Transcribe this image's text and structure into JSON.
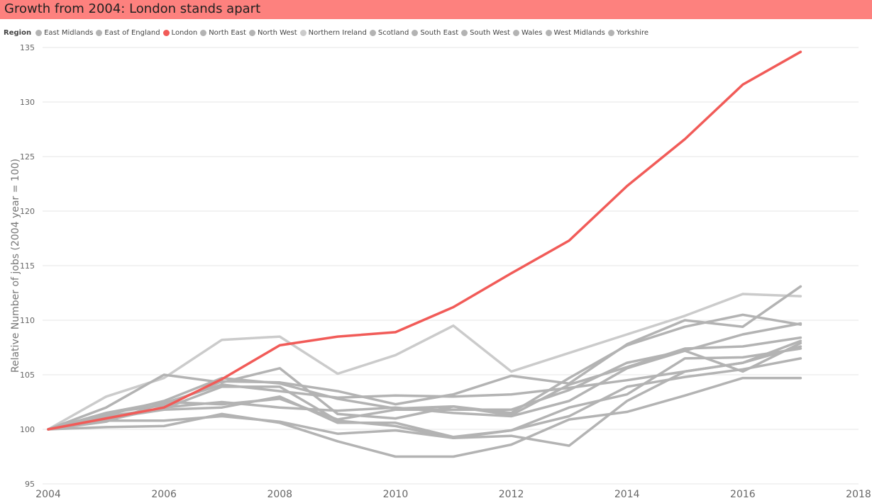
{
  "title": "Growth from 2004: London stands apart",
  "colors": {
    "title_bar": "#fd817e",
    "highlight": "#f15b58",
    "muted": "#b3b3b3",
    "muted_light": "#cbcbcb",
    "gridline": "#e6e6e6"
  },
  "legend": {
    "title": "Region",
    "placement": "top-left",
    "items": [
      {
        "label": "East Midlands",
        "color": "#b3b3b3"
      },
      {
        "label": "East of England",
        "color": "#b3b3b3"
      },
      {
        "label": "London",
        "color": "#f15b58"
      },
      {
        "label": "North East",
        "color": "#b3b3b3"
      },
      {
        "label": "North West",
        "color": "#b3b3b3"
      },
      {
        "label": "Northern Ireland",
        "color": "#cbcbcb"
      },
      {
        "label": "Scotland",
        "color": "#b3b3b3"
      },
      {
        "label": "South East",
        "color": "#b3b3b3"
      },
      {
        "label": "South West",
        "color": "#b3b3b3"
      },
      {
        "label": "Wales",
        "color": "#b3b3b3"
      },
      {
        "label": "West Midlands",
        "color": "#b3b3b3"
      },
      {
        "label": "Yorkshire",
        "color": "#b3b3b3"
      }
    ]
  },
  "chart_data": {
    "type": "line",
    "title": "Growth from 2004: London stands apart",
    "xlabel": "",
    "ylabel": "Relative Number of jobs (2004 year = 100)",
    "xlim": [
      2004,
      2018
    ],
    "ylim": [
      95,
      135
    ],
    "xticks": [
      2004,
      2006,
      2008,
      2010,
      2012,
      2014,
      2016,
      2018
    ],
    "yticks": [
      95,
      100,
      105,
      110,
      115,
      120,
      125,
      130,
      135
    ],
    "grid": true,
    "x": [
      2004,
      2005,
      2006,
      2007,
      2008,
      2009,
      2010,
      2011,
      2012,
      2013,
      2014,
      2015,
      2016,
      2017
    ],
    "series": [
      {
        "name": "London",
        "color": "#f15b58",
        "values": [
          100,
          101.0,
          102.0,
          104.6,
          107.7,
          108.5,
          108.9,
          111.2,
          114.3,
          117.3,
          122.3,
          126.6,
          131.6,
          134.6
        ]
      },
      {
        "name": "Northern Ireland",
        "color": "#cbcbcb",
        "values": [
          100,
          103.0,
          104.7,
          108.2,
          108.5,
          105.1,
          106.8,
          109.5,
          105.3,
          107.0,
          108.7,
          110.4,
          112.4,
          112.2
        ]
      },
      {
        "name": "East Midlands",
        "color": "#b3b3b3",
        "values": [
          100,
          101.5,
          102.2,
          104.4,
          104.3,
          103.5,
          102.3,
          103.2,
          104.9,
          104.2,
          107.8,
          110.0,
          109.4,
          113.1
        ]
      },
      {
        "name": "East of England",
        "color": "#b3b3b3",
        "values": [
          100,
          101.3,
          102.6,
          104.7,
          104.2,
          102.8,
          101.9,
          102.1,
          101.5,
          104.7,
          107.7,
          109.4,
          110.5,
          109.6
        ]
      },
      {
        "name": "North East",
        "color": "#b3b3b3",
        "values": [
          100,
          102.0,
          105.0,
          104.3,
          105.6,
          101.4,
          101.0,
          102.1,
          101.3,
          104.1,
          105.7,
          107.4,
          107.6,
          108.4
        ]
      },
      {
        "name": "North West",
        "color": "#b3b3b3",
        "values": [
          100,
          100.8,
          102.0,
          102.5,
          102.0,
          101.7,
          102.0,
          101.5,
          101.2,
          102.6,
          105.6,
          107.2,
          105.3,
          107.9
        ]
      },
      {
        "name": "Scotland",
        "color": "#b3b3b3",
        "values": [
          100,
          100.7,
          102.4,
          104.1,
          103.5,
          102.9,
          103.1,
          103.0,
          103.2,
          103.8,
          104.5,
          105.3,
          106.1,
          107.6
        ]
      },
      {
        "name": "South East",
        "color": "#b3b3b3",
        "values": [
          100,
          101.2,
          101.9,
          103.9,
          103.9,
          100.8,
          100.3,
          99.2,
          99.9,
          102.0,
          103.2,
          106.5,
          106.6,
          107.4
        ]
      },
      {
        "name": "South West",
        "color": "#b3b3b3",
        "values": [
          100,
          101.5,
          102.5,
          102.3,
          102.8,
          100.9,
          101.8,
          101.8,
          101.8,
          103.6,
          106.1,
          107.2,
          108.7,
          109.7
        ]
      },
      {
        "name": "Wales",
        "color": "#b3b3b3",
        "values": [
          100,
          100.2,
          100.3,
          101.4,
          100.6,
          98.9,
          97.5,
          97.5,
          98.6,
          100.9,
          101.6,
          103.1,
          104.7,
          104.7
        ]
      },
      {
        "name": "West Midlands",
        "color": "#b3b3b3",
        "values": [
          100,
          100.8,
          100.8,
          101.2,
          100.7,
          99.6,
          99.9,
          99.2,
          99.4,
          98.5,
          102.6,
          105.3,
          106.1,
          108.1
        ]
      },
      {
        "name": "Yorkshire",
        "color": "#b3b3b3",
        "values": [
          100,
          101.0,
          101.8,
          102.0,
          103.0,
          100.6,
          100.6,
          99.3,
          99.9,
          101.2,
          103.9,
          104.8,
          105.5,
          106.5
        ]
      }
    ]
  }
}
